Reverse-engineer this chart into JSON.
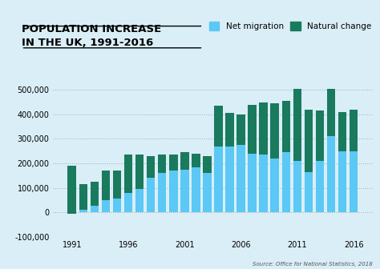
{
  "title_line1": "POPULATION INCREASE",
  "title_line2": "IN THE UK, 1991-2016",
  "years": [
    1991,
    1992,
    1993,
    1994,
    1995,
    1996,
    1997,
    1998,
    1999,
    2000,
    2001,
    2002,
    2003,
    2004,
    2005,
    2006,
    2007,
    2008,
    2009,
    2010,
    2011,
    2012,
    2013,
    2014,
    2015,
    2016
  ],
  "net_migration": [
    -5000,
    10000,
    25000,
    50000,
    55000,
    80000,
    95000,
    140000,
    160000,
    170000,
    175000,
    185000,
    160000,
    270000,
    270000,
    275000,
    240000,
    235000,
    220000,
    245000,
    210000,
    165000,
    210000,
    310000,
    250000,
    250000
  ],
  "natural_change": [
    195000,
    105000,
    100000,
    120000,
    115000,
    155000,
    140000,
    90000,
    75000,
    65000,
    70000,
    55000,
    70000,
    165000,
    135000,
    125000,
    200000,
    215000,
    225000,
    210000,
    295000,
    255000,
    205000,
    195000,
    160000,
    170000
  ],
  "migration_color": "#5bc8f5",
  "natural_color": "#1a7a5e",
  "background_color": "#daeef7",
  "ylim": [
    -100000,
    560000
  ],
  "yticks": [
    -100000,
    0,
    100000,
    200000,
    300000,
    400000,
    500000
  ],
  "source_text": "Source: Office for National Statistics, 2018",
  "legend_migration": "Net migration",
  "legend_natural": "Natural change"
}
